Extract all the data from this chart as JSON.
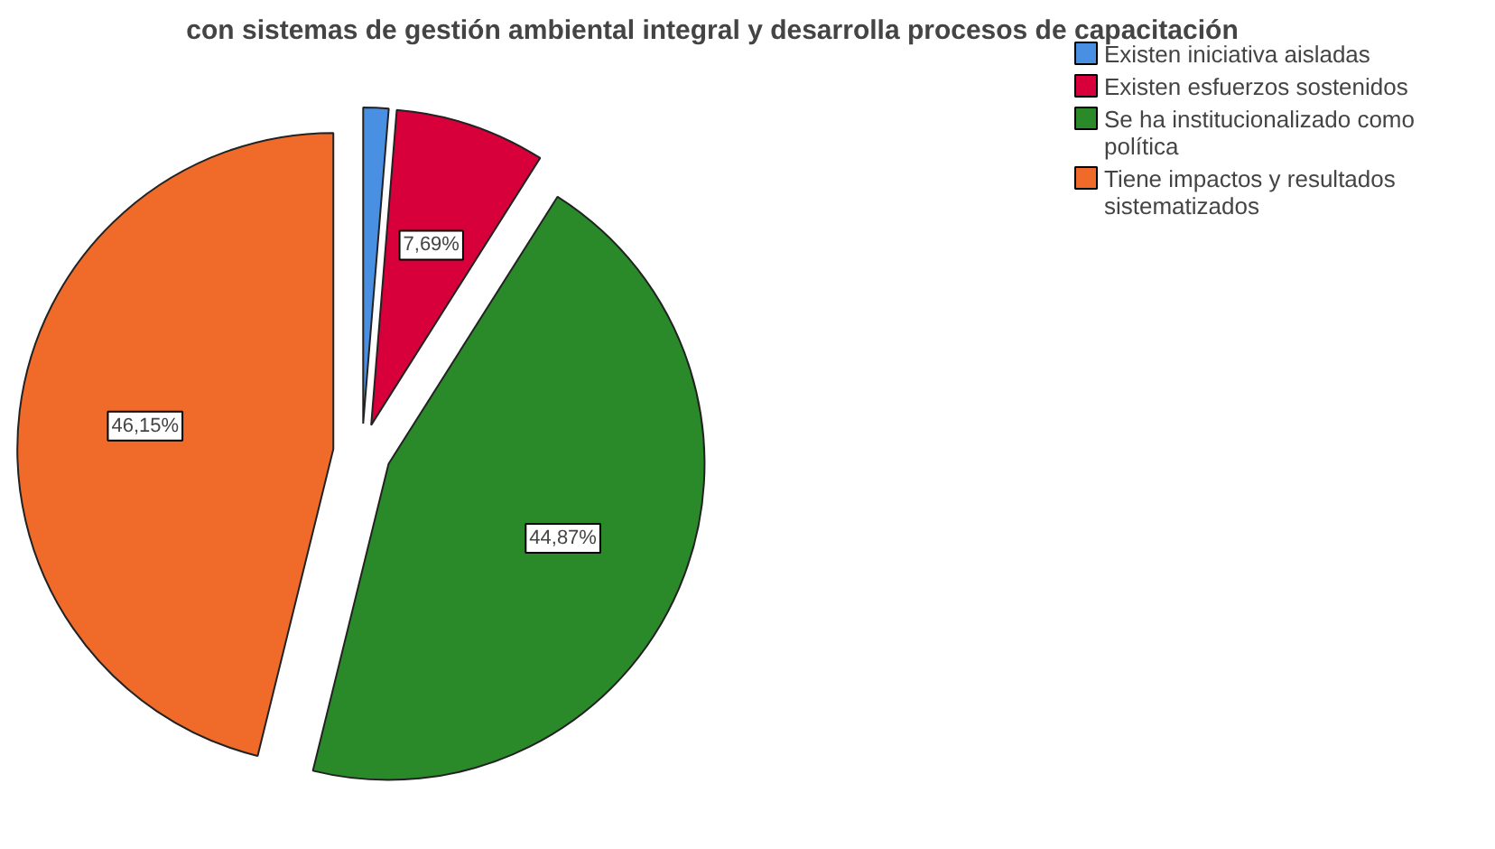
{
  "chart_data": {
    "type": "pie",
    "title": "con sistemas de gestión ambiental integral y desarrolla procesos de capacitación",
    "categories": [
      "Existen iniciativa aisladas",
      "Existen esfuerzos sostenidos",
      "Se ha institucionalizado como política",
      "Tiene impactos y resultados sistematizados"
    ],
    "values": [
      1.29,
      7.69,
      44.87,
      46.15
    ],
    "colors": [
      "#4a90e2",
      "#d8003a",
      "#2a8a2a",
      "#f06a2a"
    ],
    "value_labels": [
      null,
      "7,69%",
      "44,87%",
      "46,15%"
    ],
    "legend": "top right"
  }
}
